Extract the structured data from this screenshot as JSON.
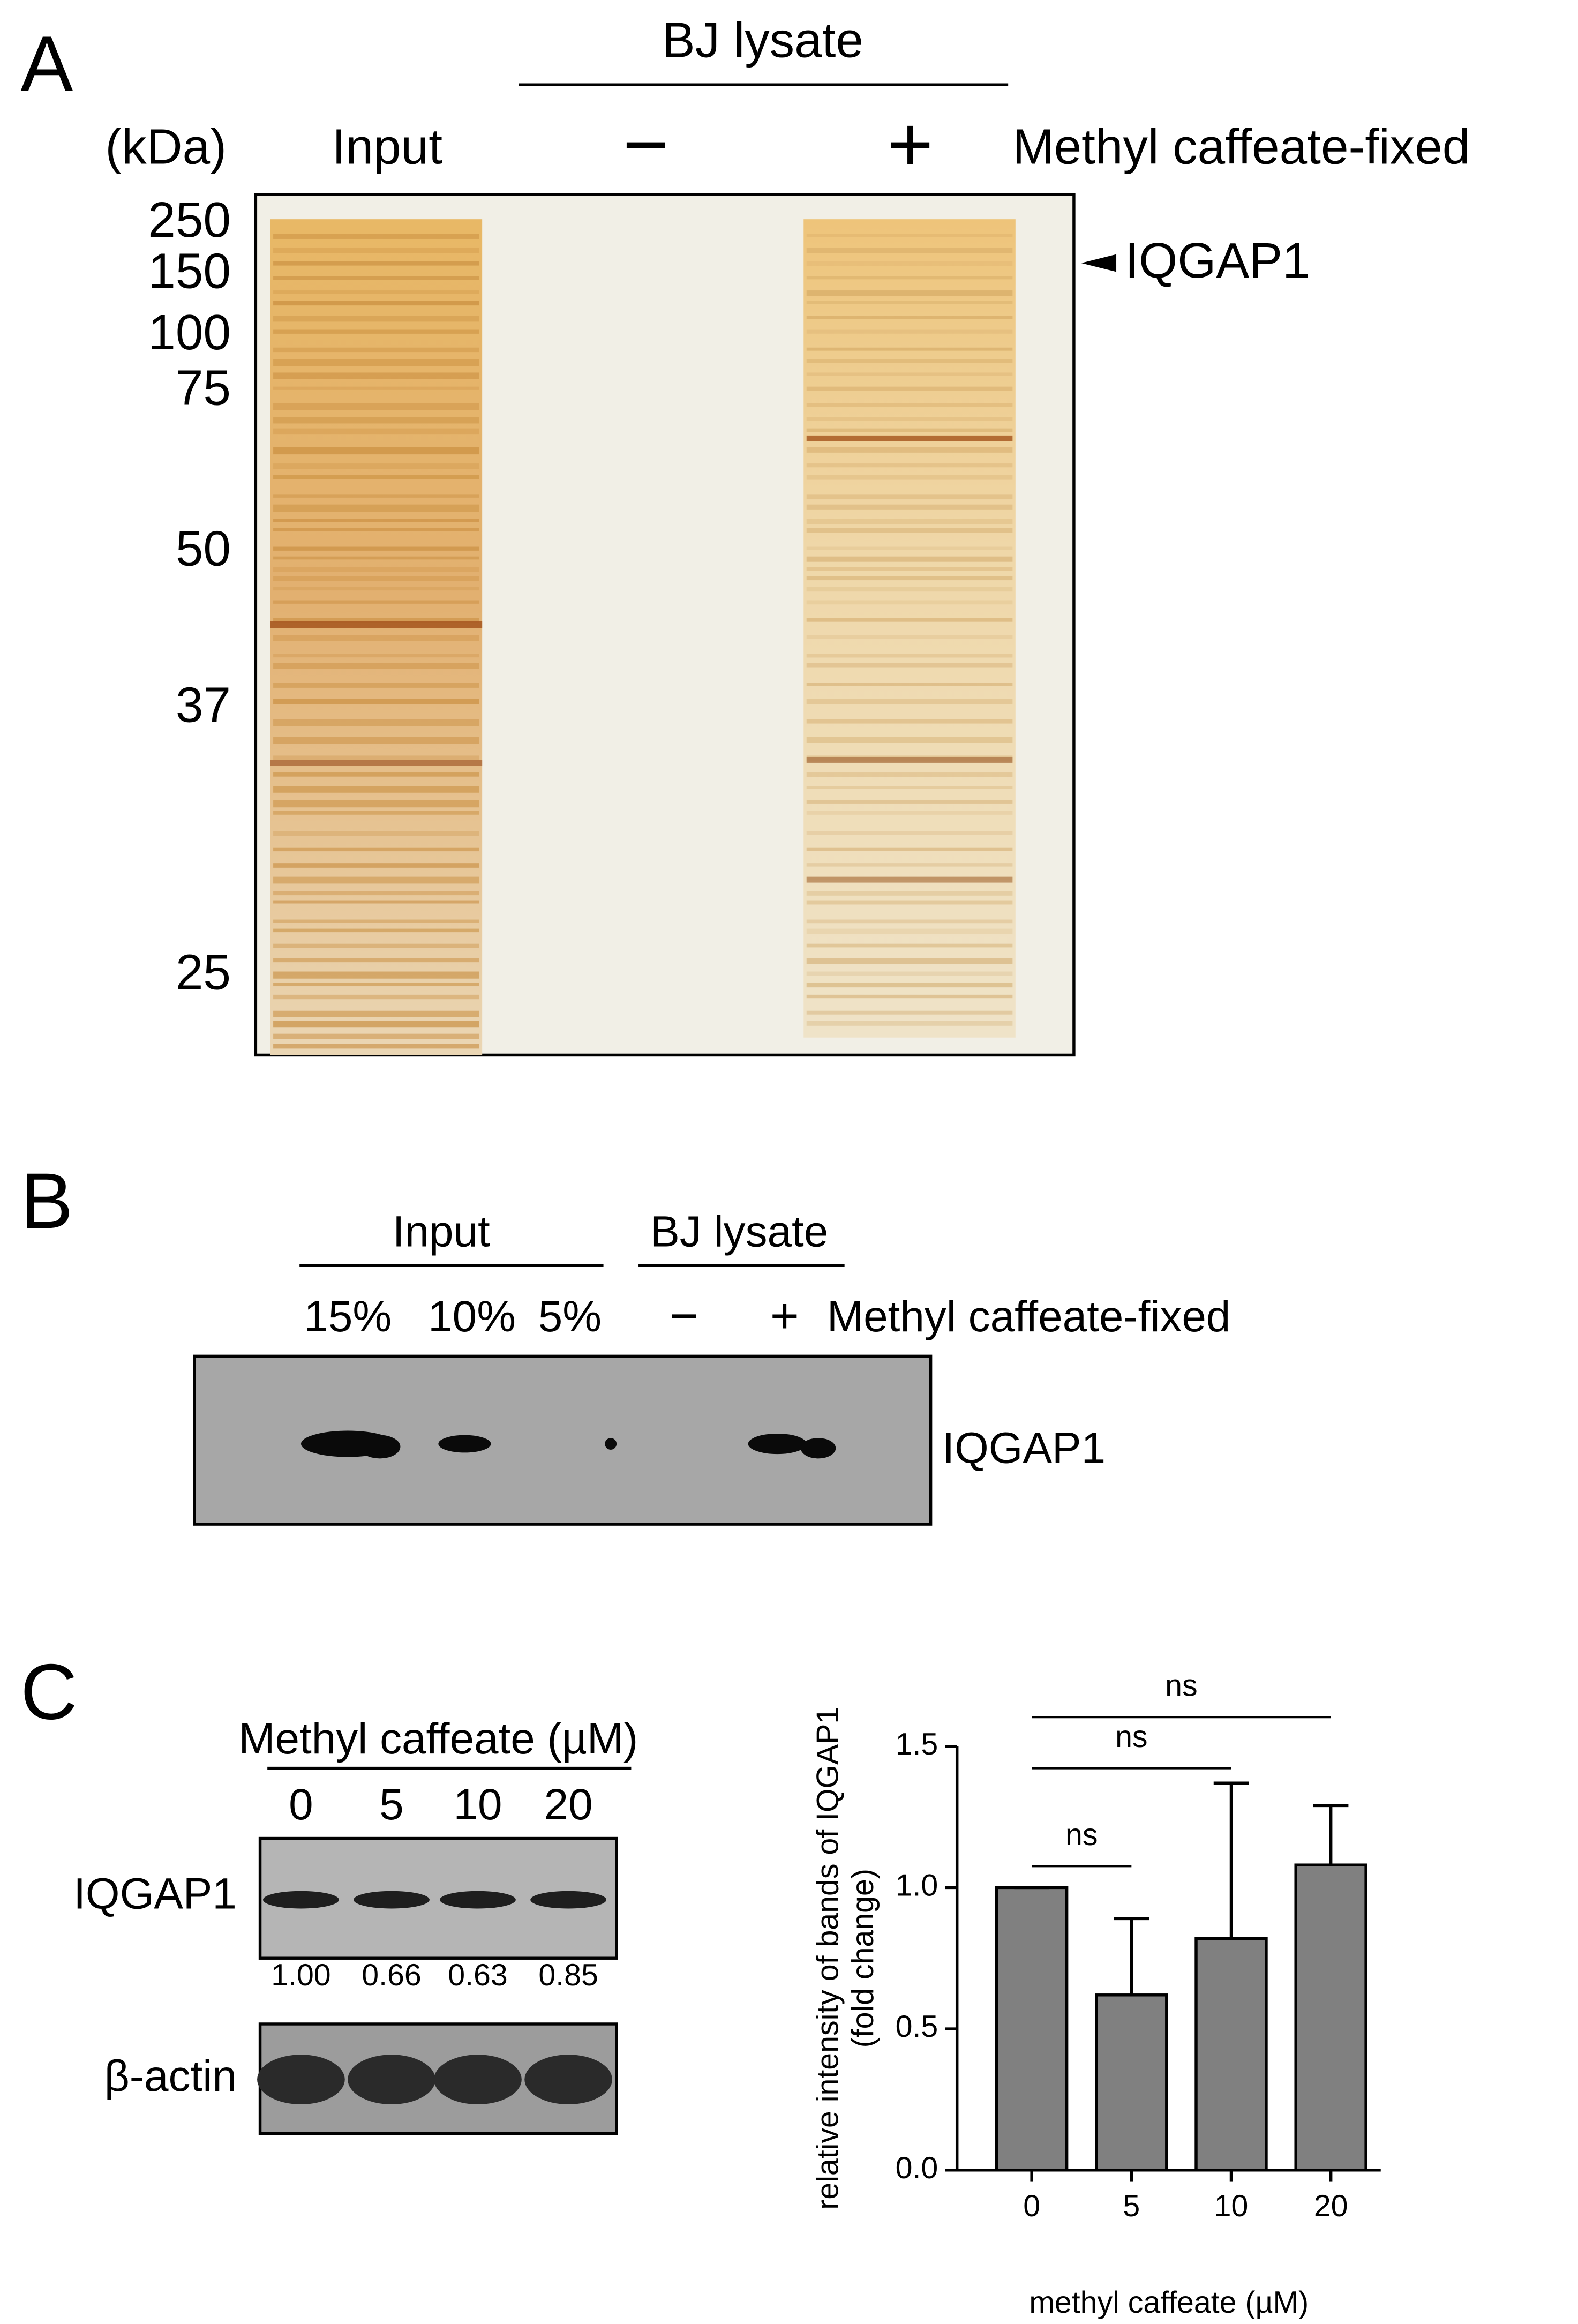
{
  "panels": {
    "a": {
      "letter": "A",
      "header": "BJ lysate",
      "unit": "(kDa)",
      "lanes": [
        "Input",
        "−",
        "+"
      ],
      "condition": "Methyl caffeate-fixed",
      "markers": [
        "250",
        "150",
        "100",
        "75",
        "50",
        "37",
        "25"
      ],
      "band_label": "IQGAP1"
    },
    "b": {
      "letter": "B",
      "groups": [
        "Input",
        "BJ lysate"
      ],
      "lanes": [
        "15%",
        "10%",
        "5%",
        "−",
        "+"
      ],
      "condition": "Methyl caffeate-fixed",
      "band_label": "IQGAP1"
    },
    "c": {
      "letter": "C",
      "header": "Methyl caffeate (µM)",
      "doses": [
        "0",
        "5",
        "10",
        "20"
      ],
      "blots": [
        "IQGAP1",
        "β-actin"
      ],
      "ratios": [
        "1.00",
        "0.66",
        "0.63",
        "0.85"
      ]
    }
  },
  "chart_data": {
    "type": "bar",
    "categories": [
      "0",
      "5",
      "10",
      "20"
    ],
    "values": [
      1.0,
      0.62,
      0.82,
      1.08
    ],
    "errors": [
      0,
      0.27,
      0.55,
      0.21
    ],
    "color": "#808080",
    "ylim": [
      0,
      1.5
    ],
    "yticks": [
      {
        "value": 0,
        "label": "0.0"
      },
      {
        "value": 0.5,
        "label": "0.5"
      },
      {
        "value": 1,
        "label": "1.0"
      },
      {
        "value": 1.5,
        "label": "1.5"
      }
    ],
    "ylabel": [
      "relative intensity of bands of IQGAP1",
      "(fold change)"
    ],
    "xlabel": "methyl caffeate (µM)",
    "annotations": [
      {
        "label": "ns",
        "pair": [
          0,
          1
        ]
      },
      {
        "label": "ns",
        "pair": [
          0,
          2
        ]
      },
      {
        "label": "ns",
        "pair": [
          0,
          3
        ]
      }
    ]
  }
}
